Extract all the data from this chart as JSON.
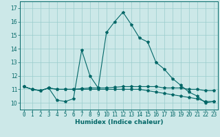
{
  "xlabel": "Humidex (Indice chaleur)",
  "background_color": "#cce8e8",
  "grid_color": "#99cccc",
  "line_color": "#006666",
  "xlim": [
    -0.5,
    23.5
  ],
  "ylim": [
    9.5,
    17.5
  ],
  "yticks": [
    10,
    11,
    12,
    13,
    14,
    15,
    16,
    17
  ],
  "xticks": [
    0,
    1,
    2,
    3,
    4,
    5,
    6,
    7,
    8,
    9,
    10,
    11,
    12,
    13,
    14,
    15,
    16,
    17,
    18,
    19,
    20,
    21,
    22,
    23
  ],
  "series1_x": [
    0,
    1,
    2,
    3,
    4,
    5,
    6,
    7,
    8,
    9,
    10,
    11,
    12,
    13,
    14,
    15,
    16,
    17,
    18,
    19,
    20,
    21,
    22,
    23
  ],
  "series1_y": [
    11.2,
    11.0,
    10.9,
    11.1,
    10.2,
    10.1,
    10.3,
    13.9,
    12.0,
    11.1,
    15.2,
    16.0,
    16.7,
    15.8,
    14.8,
    14.5,
    13.0,
    12.5,
    11.8,
    11.3,
    10.8,
    10.5,
    10.0,
    10.1
  ],
  "series2_x": [
    0,
    1,
    2,
    3,
    4,
    5,
    6,
    7,
    8,
    9,
    10,
    11,
    12,
    13,
    14,
    15,
    16,
    17,
    18,
    19,
    20,
    21,
    22,
    23
  ],
  "series2_y": [
    11.2,
    11.0,
    10.9,
    11.1,
    11.0,
    11.0,
    11.0,
    11.05,
    11.1,
    11.1,
    11.1,
    11.15,
    11.2,
    11.2,
    11.2,
    11.2,
    11.2,
    11.1,
    11.1,
    11.1,
    11.0,
    11.0,
    10.9,
    10.9
  ],
  "series3_x": [
    0,
    1,
    2,
    3,
    4,
    5,
    6,
    7,
    8,
    9,
    10,
    11,
    12,
    13,
    14,
    15,
    16,
    17,
    18,
    19,
    20,
    21,
    22,
    23
  ],
  "series3_y": [
    11.2,
    11.0,
    10.9,
    11.1,
    11.0,
    11.0,
    11.0,
    11.0,
    11.0,
    11.0,
    11.0,
    11.0,
    11.0,
    11.0,
    11.0,
    10.9,
    10.8,
    10.7,
    10.6,
    10.5,
    10.4,
    10.3,
    10.1,
    10.1
  ],
  "tick_fontsize": 5.5,
  "xlabel_fontsize": 6.5
}
